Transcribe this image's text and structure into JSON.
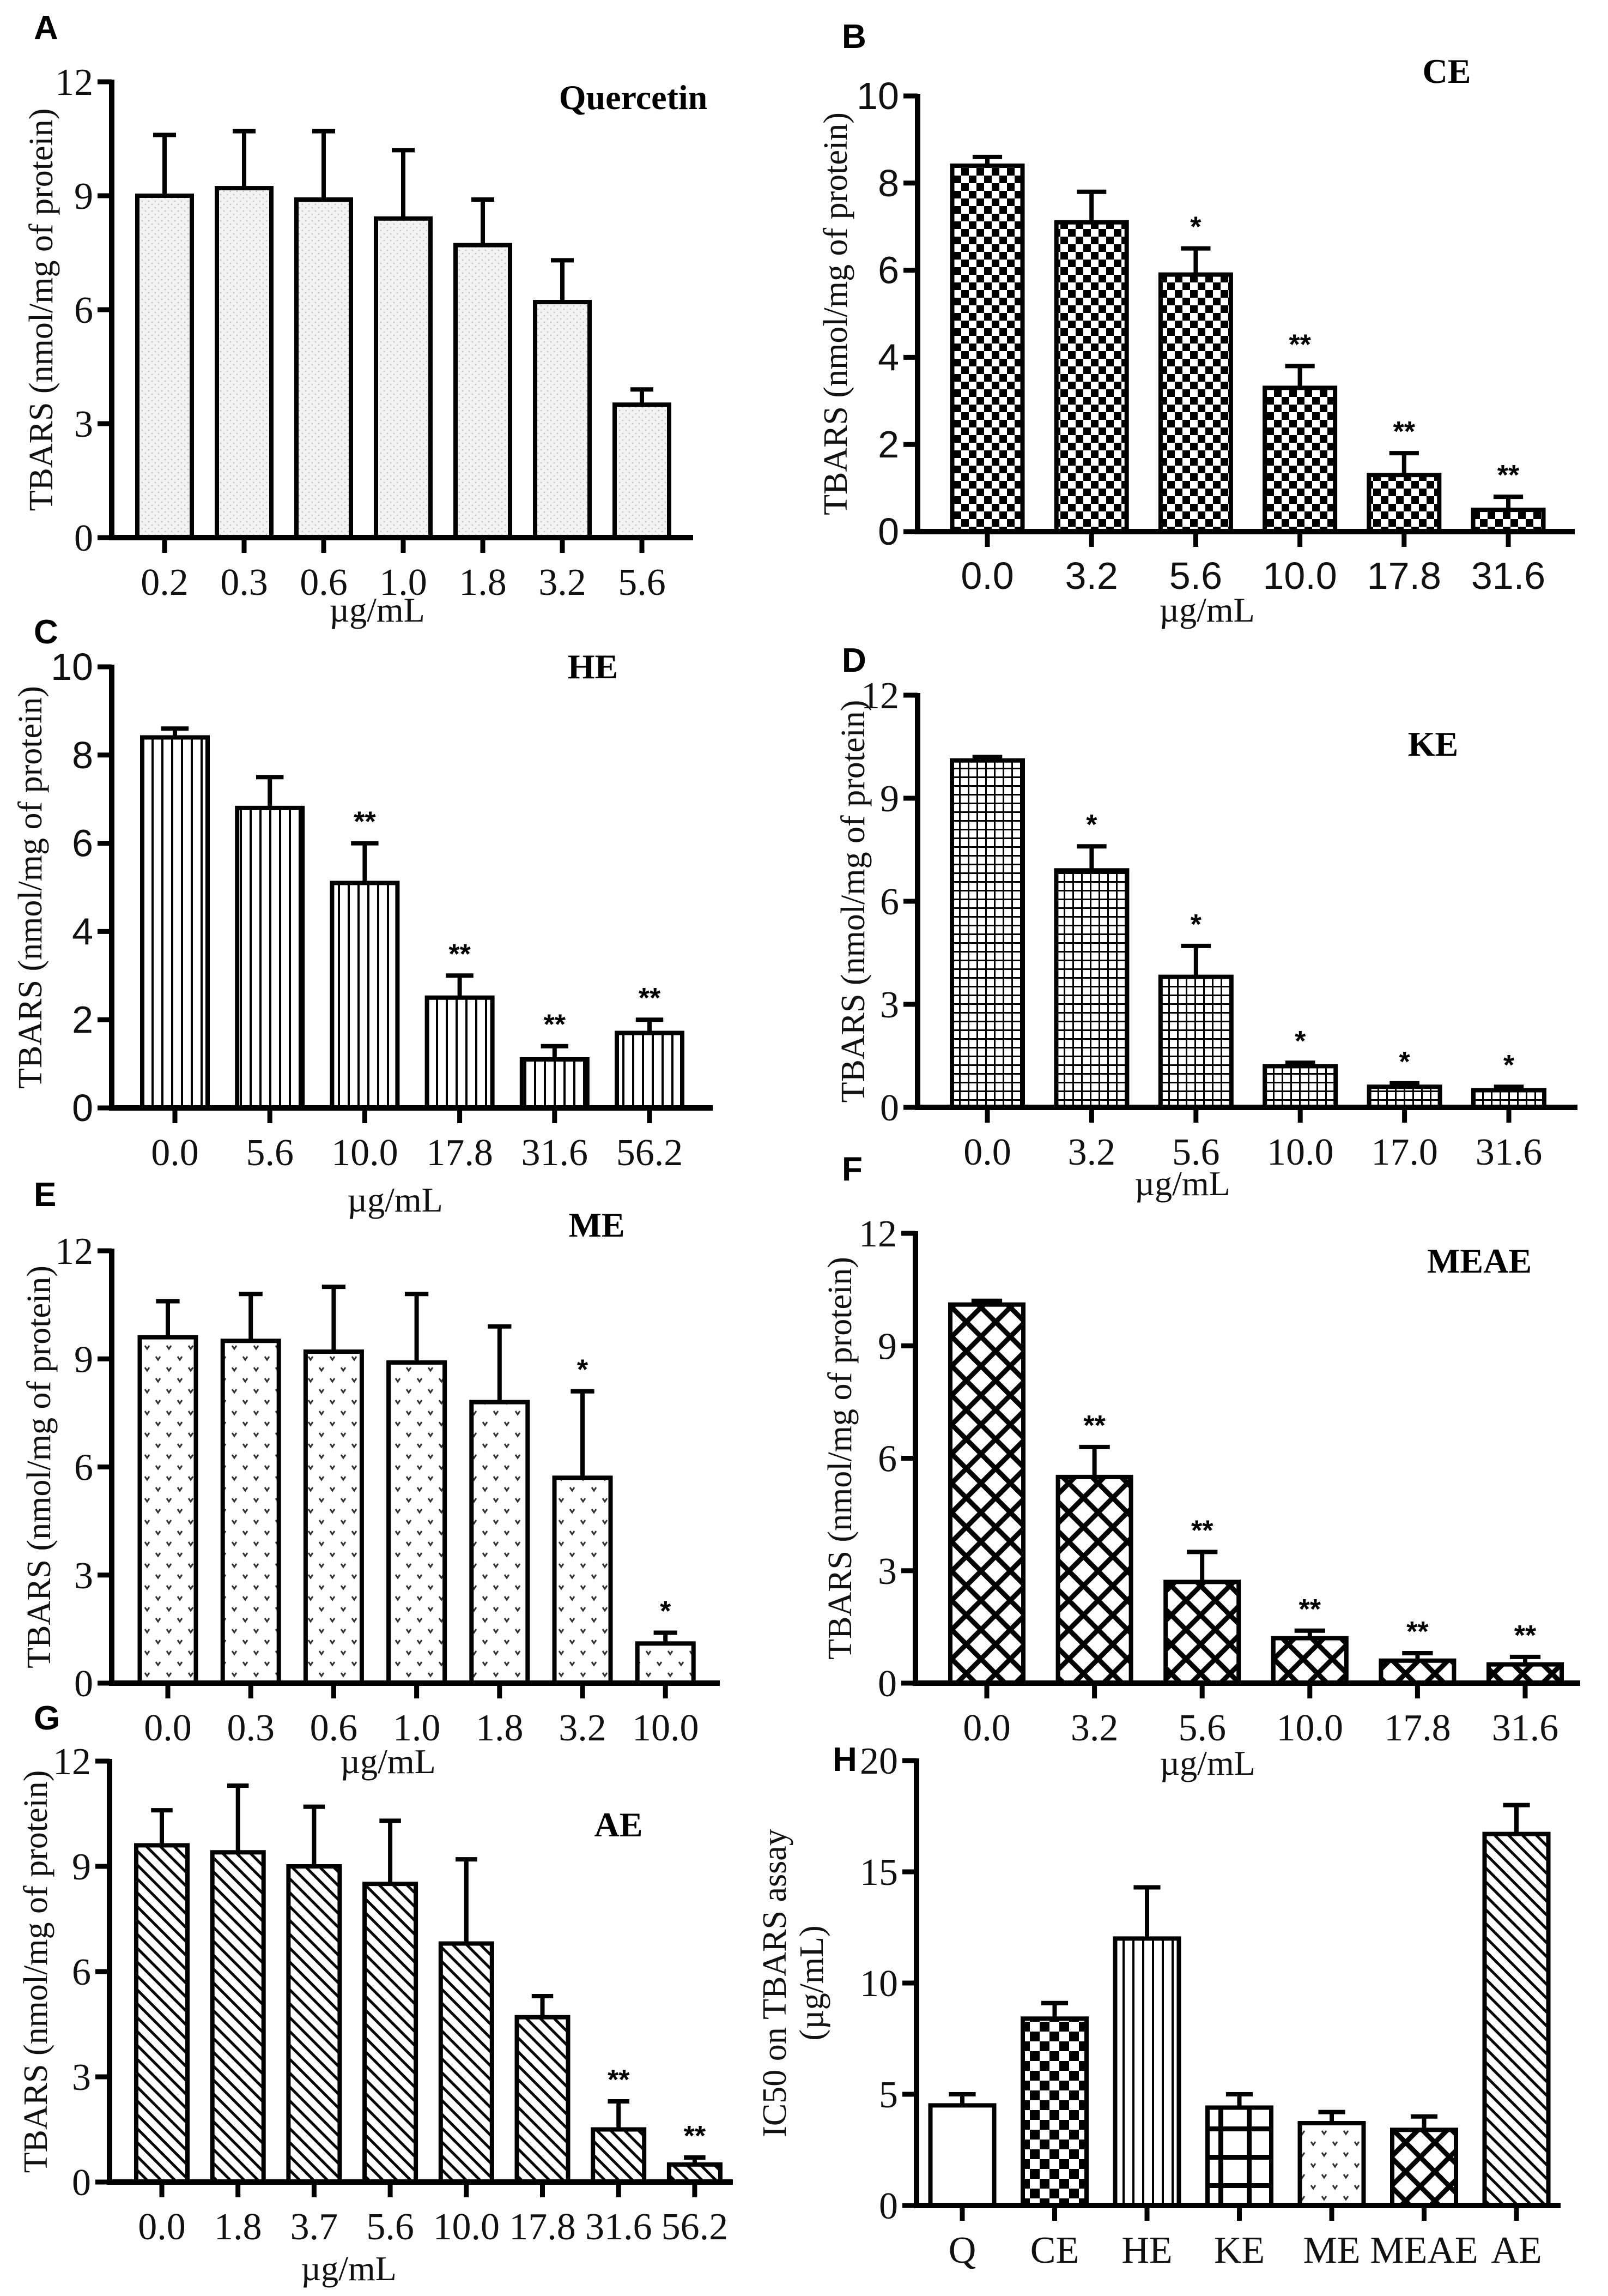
{
  "chart_data": [
    {
      "type": "bar",
      "panel": "A",
      "title": "Quercetin",
      "ylabel": "TBARS (nmol/mg of protein)",
      "xlabel": "µg/mL",
      "categories": [
        "0.2",
        "0.3",
        "0.6",
        "1.0",
        "1.8",
        "3.2",
        "5.6"
      ],
      "values": [
        9.0,
        9.2,
        8.9,
        8.4,
        7.7,
        6.2,
        3.5
      ],
      "errors": [
        1.6,
        1.5,
        1.8,
        1.8,
        1.2,
        1.1,
        0.4
      ],
      "significance": [
        "",
        "",
        "",
        "",
        "",
        "",
        ""
      ],
      "ylim": [
        0,
        12
      ],
      "yticks": [
        0,
        3,
        6,
        9,
        12
      ]
    },
    {
      "type": "bar",
      "panel": "B",
      "title": "CE",
      "ylabel": "TBARS (nmol/mg of protein)",
      "xlabel": "µg/mL",
      "categories": [
        "0.0",
        "3.2",
        "5.6",
        "10.0",
        "17.8",
        "31.6"
      ],
      "values": [
        8.4,
        7.1,
        5.9,
        3.3,
        1.3,
        0.5
      ],
      "errors": [
        0.2,
        0.7,
        0.6,
        0.5,
        0.5,
        0.3
      ],
      "significance": [
        "",
        "",
        "*",
        "**",
        "**",
        "**"
      ],
      "ylim": [
        0,
        10
      ],
      "yticks": [
        0,
        2,
        4,
        6,
        8,
        10
      ]
    },
    {
      "type": "bar",
      "panel": "C",
      "title": "HE",
      "ylabel": "TBARS (nmol/mg of protein)",
      "xlabel": "µg/mL",
      "categories": [
        "0.0",
        "5.6",
        "10.0",
        "17.8",
        "31.6",
        "56.2"
      ],
      "values": [
        8.4,
        6.8,
        5.1,
        2.5,
        1.1,
        1.7
      ],
      "errors": [
        0.2,
        0.7,
        0.9,
        0.5,
        0.3,
        0.3
      ],
      "significance": [
        "",
        "",
        "**",
        "**",
        "**",
        "**"
      ],
      "ylim": [
        0,
        10
      ],
      "yticks": [
        0,
        2,
        4,
        6,
        8,
        10
      ]
    },
    {
      "type": "bar",
      "panel": "D",
      "title": "KE",
      "ylabel": "TBARS (nmol/mg of protein)",
      "xlabel": "µg/mL",
      "categories": [
        "0.0",
        "3.2",
        "5.6",
        "10.0",
        "17.0",
        "31.6"
      ],
      "values": [
        10.1,
        6.9,
        3.8,
        1.2,
        0.6,
        0.5
      ],
      "errors": [
        0.1,
        0.7,
        0.9,
        0.1,
        0.1,
        0.1
      ],
      "significance": [
        "",
        "*",
        "*",
        "*",
        "*",
        "*"
      ],
      "ylim": [
        0,
        12
      ],
      "yticks": [
        0,
        3,
        6,
        9,
        12
      ]
    },
    {
      "type": "bar",
      "panel": "E",
      "title": "ME",
      "ylabel": "TBARS (nmol/mg of protein)",
      "xlabel": "µg/mL",
      "categories": [
        "0.0",
        "0.3",
        "0.6",
        "1.0",
        "1.8",
        "3.2",
        "10.0"
      ],
      "values": [
        9.6,
        9.5,
        9.2,
        8.9,
        7.8,
        5.7,
        1.1
      ],
      "errors": [
        1.0,
        1.3,
        1.8,
        1.9,
        2.1,
        2.4,
        0.3
      ],
      "significance": [
        "",
        "",
        "",
        "",
        "",
        "*",
        "*"
      ],
      "ylim": [
        0,
        12
      ],
      "yticks": [
        0,
        3,
        6,
        9,
        12
      ]
    },
    {
      "type": "bar",
      "panel": "F",
      "title": "MEAE",
      "ylabel": "TBARS (nmol/mg of protein)",
      "xlabel": "µg/mL",
      "categories": [
        "0.0",
        "3.2",
        "5.6",
        "10.0",
        "17.8",
        "31.6"
      ],
      "values": [
        10.1,
        5.5,
        2.7,
        1.2,
        0.6,
        0.5
      ],
      "errors": [
        0.1,
        0.8,
        0.8,
        0.2,
        0.2,
        0.2
      ],
      "significance": [
        "",
        "**",
        "**",
        "**",
        "**",
        "**"
      ],
      "ylim": [
        0,
        12
      ],
      "yticks": [
        0,
        3,
        6,
        9,
        12
      ]
    },
    {
      "type": "bar",
      "panel": "G",
      "title": "AE",
      "ylabel": "TBARS (nmol/mg of protein)",
      "xlabel": "µg/mL",
      "categories": [
        "0.0",
        "1.8",
        "3.7",
        "5.6",
        "10.0",
        "17.8",
        "31.6",
        "56.2"
      ],
      "values": [
        9.6,
        9.4,
        9.0,
        8.5,
        6.8,
        4.7,
        1.5,
        0.5
      ],
      "errors": [
        1.0,
        1.9,
        1.7,
        1.8,
        2.4,
        0.6,
        0.8,
        0.2
      ],
      "significance": [
        "",
        "",
        "",
        "",
        "",
        "",
        "**",
        "**"
      ],
      "ylim": [
        0,
        12
      ],
      "yticks": [
        0,
        3,
        6,
        9,
        12
      ]
    },
    {
      "type": "bar",
      "panel": "H",
      "title": "",
      "ylabel": "IC50 on TBARS assay",
      "ylabel_unit": "(µg/mL)",
      "xlabel": "",
      "categories": [
        "Q",
        "CE",
        "HE",
        "KE",
        "ME",
        "MEAE",
        "AE"
      ],
      "values": [
        4.5,
        8.4,
        12.0,
        4.4,
        3.7,
        3.4,
        16.7
      ],
      "errors": [
        0.5,
        0.7,
        2.3,
        0.6,
        0.5,
        0.6,
        1.3
      ],
      "significance": [
        "",
        "",
        "",
        "",
        "",
        "",
        ""
      ],
      "ylim": [
        0,
        20
      ],
      "yticks": [
        0,
        5,
        10,
        15,
        20
      ]
    }
  ]
}
